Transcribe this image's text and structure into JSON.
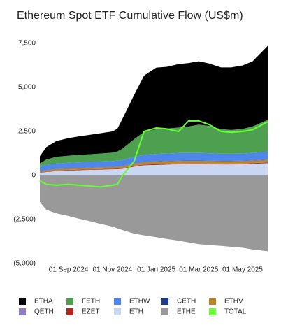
{
  "chart_data": {
    "type": "stacked-area",
    "title": "Ethereum Spot ETF Cumulative Flow (US$m)",
    "x": [
      "2024-07-23",
      "2024-08-01",
      "2024-08-15",
      "2024-09-01",
      "2024-09-15",
      "2024-10-01",
      "2024-10-15",
      "2024-11-01",
      "2024-11-08",
      "2024-11-15",
      "2024-12-01",
      "2024-12-15",
      "2025-01-01",
      "2025-01-15",
      "2025-02-01",
      "2025-02-15",
      "2025-03-01",
      "2025-03-15",
      "2025-04-01",
      "2025-04-15",
      "2025-05-01",
      "2025-05-15",
      "2025-06-05"
    ],
    "xlim": [
      "2024-07-23",
      "2025-06-05"
    ],
    "xticks": [
      {
        "value": "2024-09-01",
        "label": "01 Sep 2024"
      },
      {
        "value": "2024-11-01",
        "label": "01 Nov 2024"
      },
      {
        "value": "2025-01-01",
        "label": "01 Jan 2025"
      },
      {
        "value": "2025-03-01",
        "label": "01 Mar 2025"
      },
      {
        "value": "2025-05-01",
        "label": "01 May 2025"
      }
    ],
    "ylim": [
      -5000,
      7500
    ],
    "yticks": [
      {
        "value": 7500,
        "label": "7,500"
      },
      {
        "value": 5000,
        "label": "5,000"
      },
      {
        "value": 2500,
        "label": "2,500"
      },
      0,
      {
        "value": -2500,
        "label": "(2,500)"
      },
      {
        "value": -5000,
        "label": "(5,000)"
      }
    ],
    "grid": false,
    "series": [
      {
        "name": "ETHA",
        "color": "#000000",
        "values": [
          400,
          700,
          900,
          1000,
          1050,
          1100,
          1150,
          1200,
          1300,
          1700,
          2500,
          3200,
          3500,
          3500,
          3600,
          3600,
          3600,
          3550,
          3500,
          3550,
          3600,
          3700,
          4200
        ]
      },
      {
        "name": "FETH",
        "color": "#4e9f50",
        "values": [
          200,
          300,
          380,
          400,
          420,
          430,
          450,
          480,
          520,
          650,
          1000,
          1300,
          1400,
          1420,
          1450,
          1500,
          1600,
          1550,
          1400,
          1350,
          1400,
          1500,
          1800
        ]
      },
      {
        "name": "ETHW",
        "color": "#4f86ec",
        "values": [
          250,
          300,
          310,
          320,
          320,
          330,
          330,
          330,
          340,
          350,
          380,
          400,
          420,
          420,
          430,
          430,
          430,
          420,
          400,
          400,
          400,
          420,
          450
        ]
      },
      {
        "name": "CETH",
        "color": "#1f3d8c",
        "values": [
          5,
          10,
          10,
          10,
          10,
          10,
          10,
          10,
          10,
          10,
          10,
          15,
          15,
          15,
          15,
          15,
          15,
          15,
          15,
          15,
          15,
          15,
          15
        ]
      },
      {
        "name": "ETHV",
        "color": "#b8862a",
        "values": [
          60,
          70,
          75,
          80,
          80,
          85,
          85,
          90,
          95,
          100,
          120,
          130,
          140,
          140,
          140,
          140,
          140,
          140,
          140,
          140,
          140,
          140,
          140
        ]
      },
      {
        "name": "QETH",
        "color": "#8e7cc3",
        "values": [
          5,
          5,
          5,
          5,
          5,
          5,
          5,
          5,
          5,
          5,
          10,
          10,
          10,
          10,
          10,
          10,
          10,
          10,
          10,
          10,
          10,
          10,
          10
        ]
      },
      {
        "name": "EZET",
        "color": "#b3261e",
        "values": [
          20,
          25,
          30,
          30,
          30,
          30,
          35,
          35,
          35,
          35,
          40,
          40,
          40,
          40,
          40,
          40,
          40,
          40,
          40,
          40,
          40,
          40,
          40
        ]
      },
      {
        "name": "ETH",
        "color": "#c9d7f2",
        "values": [
          150,
          200,
          250,
          280,
          300,
          320,
          330,
          350,
          360,
          380,
          500,
          580,
          600,
          620,
          640,
          650,
          650,
          640,
          630,
          630,
          640,
          660,
          700
        ]
      },
      {
        "name": "ETHE",
        "color": "#999999",
        "values": [
          -1500,
          -1950,
          -2150,
          -2300,
          -2450,
          -2600,
          -2750,
          -2900,
          -3000,
          -3100,
          -3300,
          -3400,
          -3500,
          -3600,
          -3700,
          -3800,
          -3900,
          -3950,
          -4000,
          -4050,
          -4100,
          -4200,
          -4300
        ]
      },
      {
        "name": "TOTAL",
        "color": "#66ff33",
        "line": true,
        "values": [
          -300,
          -500,
          -550,
          -500,
          -550,
          -600,
          -650,
          -550,
          -500,
          0,
          800,
          2500,
          2700,
          2650,
          2500,
          3100,
          3100,
          2900,
          2500,
          2450,
          2500,
          2600,
          3050
        ]
      }
    ]
  }
}
